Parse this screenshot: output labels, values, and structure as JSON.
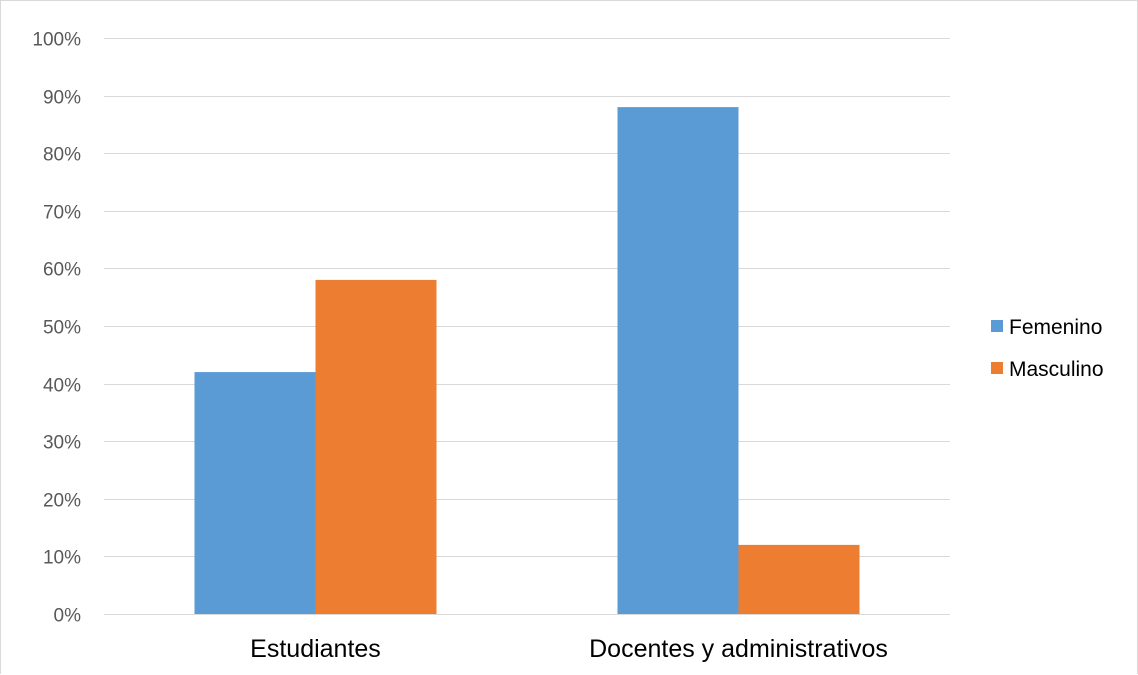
{
  "chart_data": {
    "type": "bar",
    "categories": [
      "Estudiantes",
      "Docentes y administrativos"
    ],
    "series": [
      {
        "name": "Femenino",
        "values": [
          42,
          88
        ],
        "color": "#5b9bd5"
      },
      {
        "name": "Masculino",
        "values": [
          58,
          12
        ],
        "color": "#ed7d31"
      }
    ],
    "ylim": [
      0,
      100
    ],
    "yticks": [
      0,
      10,
      20,
      30,
      40,
      50,
      60,
      70,
      80,
      90,
      100
    ],
    "ytick_labels": [
      "0%",
      "10%",
      "20%",
      "30%",
      "40%",
      "50%",
      "60%",
      "70%",
      "80%",
      "90%",
      "100%"
    ],
    "grid": true,
    "legend_position": "right"
  }
}
